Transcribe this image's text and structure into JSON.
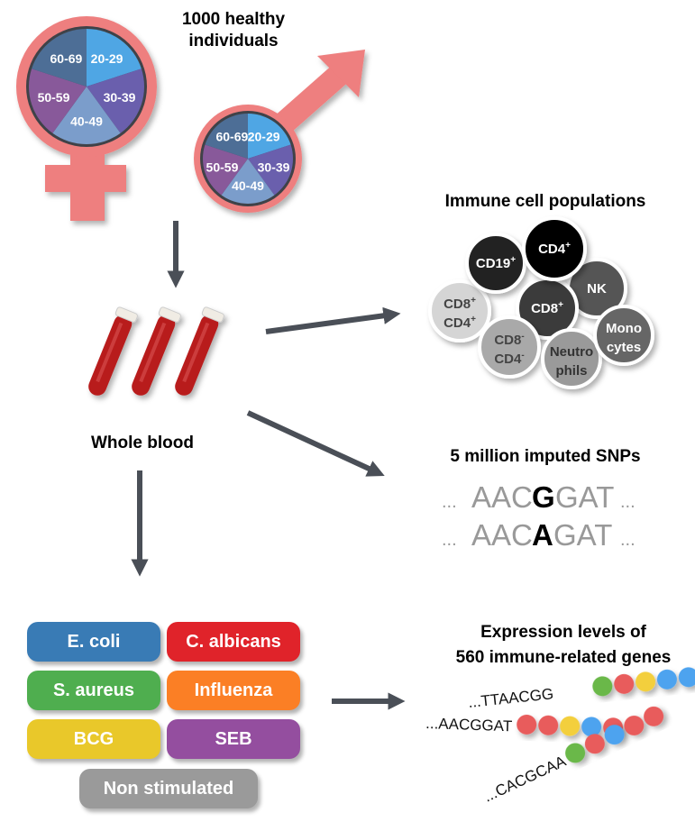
{
  "population": {
    "title_line1": "1000 healthy",
    "title_line2": "individuals",
    "age_groups": [
      "20-29",
      "30-39",
      "40-49",
      "50-59",
      "60-69"
    ],
    "age_colors": [
      "#4fa6e4",
      "#6a5fad",
      "#7b9dcb",
      "#88599a",
      "#4d6e96"
    ],
    "symbol_color": "#ee7f7f"
  },
  "blood": {
    "label": "Whole blood"
  },
  "cells": {
    "title": "Immune cell populations",
    "items": [
      {
        "l1": "CD19",
        "s1": "+",
        "l2": "",
        "s2": ""
      },
      {
        "l1": "CD4",
        "s1": "+",
        "l2": "",
        "s2": ""
      },
      {
        "l1": "NK",
        "s1": "",
        "l2": "",
        "s2": ""
      },
      {
        "l1": "CD8",
        "s1": "+",
        "l2": "",
        "s2": ""
      },
      {
        "l1": "CD8",
        "s1": "+",
        "l2": "CD4",
        "s2": "+"
      },
      {
        "l1": "CD8",
        "s1": "-",
        "l2": "CD4",
        "s2": "-"
      },
      {
        "l1": "Neutro",
        "s1": "",
        "l2": "phils",
        "s2": ""
      },
      {
        "l1": "Mono",
        "s1": "",
        "l2": "cytes",
        "s2": ""
      }
    ]
  },
  "snps": {
    "title": "5 million imputed SNPs",
    "seq1": {
      "dots_left": "...",
      "pre": "AAC",
      "variant": "G",
      "post": "GAT",
      "dots_right": "..."
    },
    "seq2": {
      "dots_left": "...",
      "pre": "AAC",
      "variant": "A",
      "post": "GAT",
      "dots_right": "..."
    }
  },
  "stimuli": {
    "items": [
      {
        "label": "E. coli",
        "color": "#397bb5"
      },
      {
        "label": "C. albicans",
        "color": "#e0232a"
      },
      {
        "label": "S. aureus",
        "color": "#4fae4f"
      },
      {
        "label": "Influenza",
        "color": "#fb7f25"
      },
      {
        "label": "BCG",
        "color": "#e9c82a"
      },
      {
        "label": "SEB",
        "color": "#944e9f"
      },
      {
        "label": "Non stimulated",
        "color": "#9a9a9a"
      }
    ]
  },
  "expression": {
    "title_line1": "Expression levels of",
    "title_line2": "560 immune-related genes",
    "seqs": [
      "...TTAACGG",
      "...AACGGAT",
      "...CACGCAA"
    ]
  }
}
